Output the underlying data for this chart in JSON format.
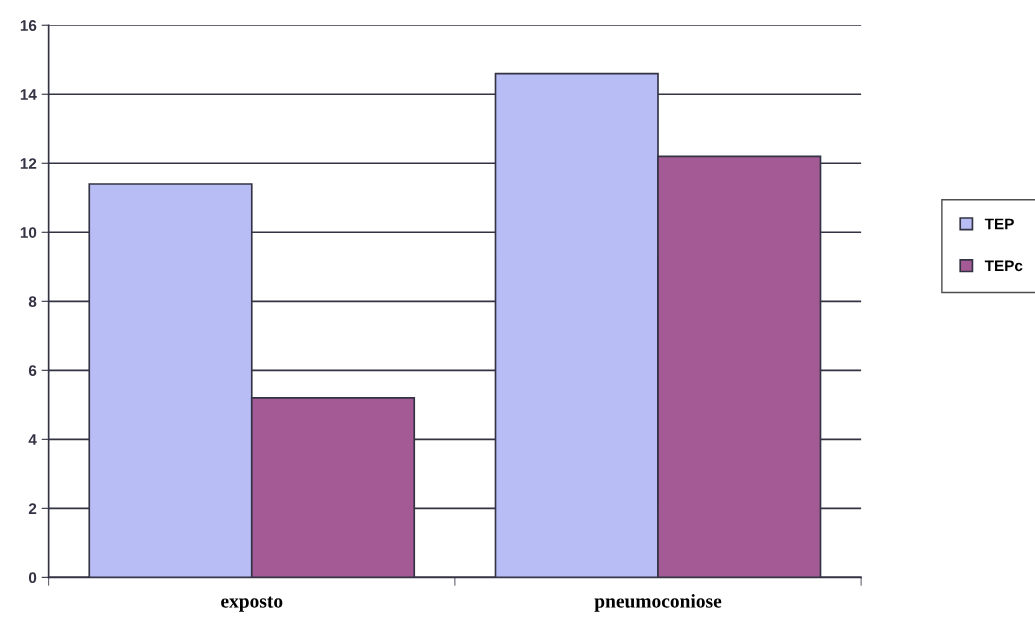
{
  "chart_data": {
    "type": "bar",
    "categories": [
      "exposto",
      "pneumoconiose"
    ],
    "series": [
      {
        "name": "TEP",
        "color": "#b9bdf5",
        "values": [
          11.4,
          14.6
        ]
      },
      {
        "name": "TEPc",
        "color": "#a45a95",
        "values": [
          5.2,
          12.2
        ]
      }
    ],
    "ylim": [
      0,
      16
    ],
    "yticks": [
      0,
      2,
      4,
      6,
      8,
      10,
      12,
      14,
      16
    ],
    "grid": "y",
    "legend": "right"
  }
}
